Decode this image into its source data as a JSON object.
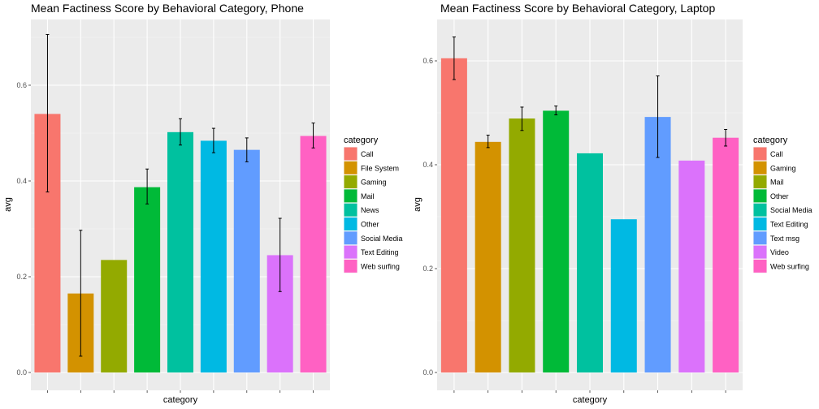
{
  "chart_data": [
    {
      "type": "bar",
      "title": "Mean Factiness Score by Behavioral Category, Phone",
      "xlabel": "category",
      "ylabel": "avg",
      "ylim": [
        0,
        0.74
      ],
      "yticks": [
        0.0,
        0.2,
        0.4,
        0.6
      ],
      "ytick_labels": [
        "0.0",
        "0.2",
        "0.4",
        "0.6"
      ],
      "grid": true,
      "legend": {
        "title": "category",
        "placement": "right"
      },
      "categories": [
        "Call",
        "File System",
        "Gaming",
        "Mail",
        "News",
        "Other",
        "Social Media",
        "Text Editing",
        "Web surfing"
      ],
      "values": [
        0.54,
        0.165,
        0.235,
        0.387,
        0.502,
        0.484,
        0.465,
        0.245,
        0.494
      ],
      "error_low": [
        0.377,
        0.034,
        null,
        0.352,
        0.475,
        0.459,
        0.44,
        0.169,
        0.469
      ],
      "error_high": [
        0.706,
        0.297,
        null,
        0.425,
        0.53,
        0.51,
        0.49,
        0.322,
        0.521
      ],
      "colors": [
        "#F8766D",
        "#D39200",
        "#93AA00",
        "#00BA38",
        "#00C19F",
        "#00B9E3",
        "#619CFF",
        "#DB72FB",
        "#FF61C3"
      ]
    },
    {
      "type": "bar",
      "title": "Mean Factiness Score by Behavioral Category, Laptop",
      "xlabel": "category",
      "ylabel": "avg",
      "ylim": [
        0,
        0.68
      ],
      "yticks": [
        0.0,
        0.2,
        0.4,
        0.6
      ],
      "ytick_labels": [
        "0.0",
        "0.2",
        "0.4",
        "0.6"
      ],
      "grid": true,
      "legend": {
        "title": "category",
        "placement": "right"
      },
      "categories": [
        "Call",
        "Gaming",
        "Mail",
        "Other",
        "Social Media",
        "Text Editing",
        "Text msg",
        "Video",
        "Web surfing"
      ],
      "values": [
        0.605,
        0.444,
        0.489,
        0.504,
        0.422,
        0.295,
        0.492,
        0.408,
        0.452
      ],
      "error_low": [
        0.564,
        0.433,
        0.466,
        0.496,
        null,
        null,
        0.414,
        null,
        0.436
      ],
      "error_high": [
        0.646,
        0.457,
        0.511,
        0.513,
        null,
        null,
        0.571,
        null,
        0.468
      ],
      "colors": [
        "#F8766D",
        "#D39200",
        "#93AA00",
        "#00BA38",
        "#00C19F",
        "#00B9E3",
        "#619CFF",
        "#DB72FB",
        "#FF61C3"
      ]
    }
  ]
}
